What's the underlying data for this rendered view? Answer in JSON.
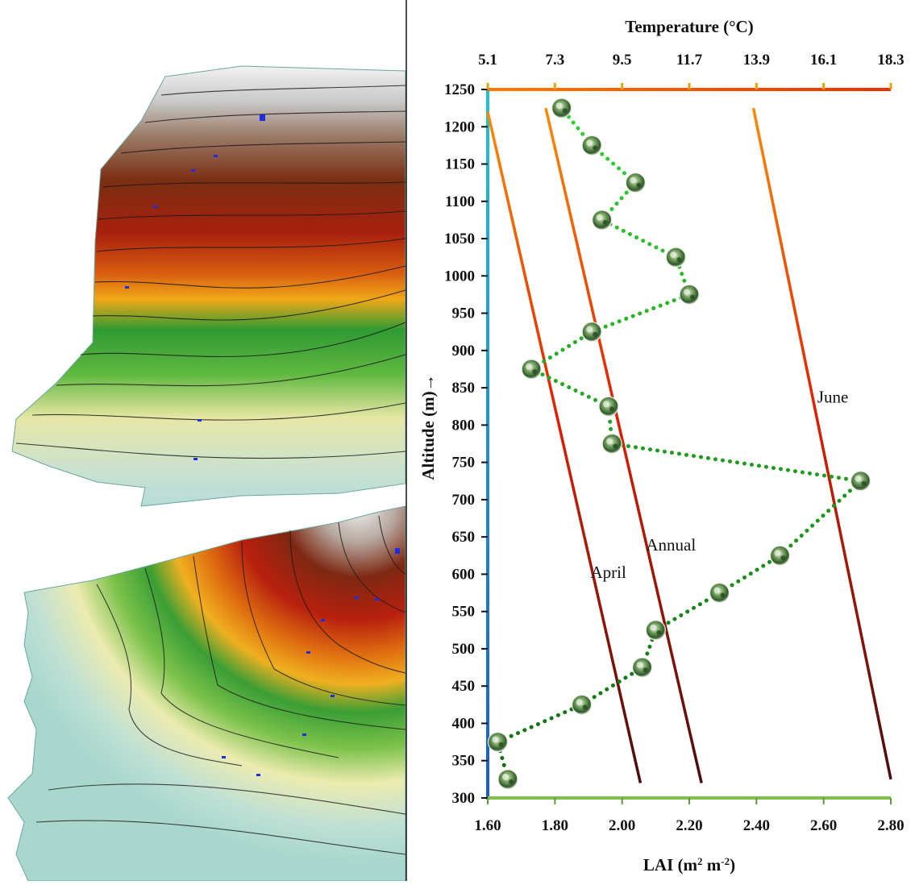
{
  "chart_data": {
    "type": "scatter",
    "left_panel": "3D terrain relief maps (two views) with contour lines",
    "y_axis": {
      "label": "Altitude (m)→",
      "range": [
        300,
        1250
      ],
      "ticks": [
        300,
        350,
        400,
        450,
        500,
        550,
        600,
        650,
        700,
        750,
        800,
        850,
        900,
        950,
        1000,
        1050,
        1100,
        1150,
        1200,
        1250
      ]
    },
    "x_axis_bottom": {
      "label": "LAI (m² m⁻²)",
      "label_main": "LAI (m",
      "label_sup1": "2",
      "label_mid": " m",
      "label_sup2": "-2",
      "label_end": ")",
      "range": [
        1.6,
        2.8
      ],
      "ticks": [
        "1.60",
        "1.80",
        "2.00",
        "2.20",
        "2.40",
        "2.60",
        "2.80"
      ]
    },
    "x_axis_top": {
      "label": "Temperature (°C)",
      "range": [
        5.1,
        18.3
      ],
      "ticks": [
        "5.1",
        "7.3",
        "9.5",
        "11.7",
        "13.9",
        "16.1",
        "18.3"
      ]
    },
    "lai_series": [
      {
        "lai": 1.66,
        "altitude": 325
      },
      {
        "lai": 1.63,
        "altitude": 375
      },
      {
        "lai": 1.88,
        "altitude": 425
      },
      {
        "lai": 2.06,
        "altitude": 475
      },
      {
        "lai": 2.1,
        "altitude": 525
      },
      {
        "lai": 2.29,
        "altitude": 575
      },
      {
        "lai": 2.47,
        "altitude": 625
      },
      {
        "lai": 2.71,
        "altitude": 725
      },
      {
        "lai": 1.97,
        "altitude": 775
      },
      {
        "lai": 1.96,
        "altitude": 825
      },
      {
        "lai": 1.73,
        "altitude": 875
      },
      {
        "lai": 1.91,
        "altitude": 925
      },
      {
        "lai": 2.2,
        "altitude": 975
      },
      {
        "lai": 2.16,
        "altitude": 1025
      },
      {
        "lai": 1.94,
        "altitude": 1075
      },
      {
        "lai": 2.04,
        "altitude": 1125
      },
      {
        "lai": 1.91,
        "altitude": 1175
      },
      {
        "lai": 1.82,
        "altitude": 1225
      }
    ],
    "temperature_lines": [
      {
        "name": "April",
        "points": [
          {
            "temp": 5.1,
            "altitude": 1220
          },
          {
            "temp": 10.1,
            "altitude": 320
          }
        ]
      },
      {
        "name": "Annual",
        "points": [
          {
            "temp": 7.0,
            "altitude": 1225
          },
          {
            "temp": 12.1,
            "altitude": 320
          }
        ]
      },
      {
        "name": "June",
        "points": [
          {
            "temp": 13.8,
            "altitude": 1225
          },
          {
            "temp": 18.3,
            "altitude": 325
          }
        ]
      }
    ],
    "colors": {
      "altitude_axis_top": "#22c4cc",
      "altitude_axis_bottom": "#1c5ccc",
      "temp_axis_left": "#ff7a00",
      "temp_axis_right": "#e83000",
      "lai_axis": "#7cbf4a",
      "line_top": "#ff8a00",
      "line_mid": "#e02000",
      "line_bottom": "#4a0d0d",
      "dots_top": "#33d633",
      "dots_bottom": "#0d6a0d"
    }
  }
}
